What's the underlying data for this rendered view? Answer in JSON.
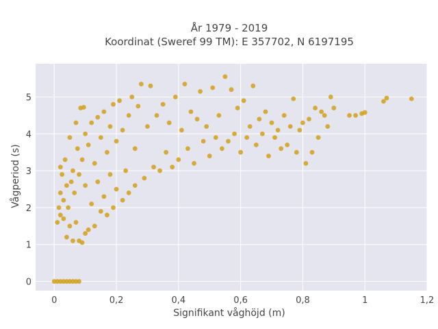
{
  "chart_data": {
    "type": "scatter",
    "title": "År 1979 - 2019",
    "subtitle": "Koordinat (Sweref 99 TM): E 357702, N 6197195",
    "xlabel": "Signifikant våghöjd (m)",
    "ylabel": "Vågperiod (s)",
    "xlim": [
      -0.06,
      1.2
    ],
    "ylim": [
      -0.25,
      5.9
    ],
    "x_ticks": [
      0,
      0.2,
      0.4,
      0.6,
      0.8,
      1,
      1.2
    ],
    "x_tick_labels": [
      "0",
      "0,2",
      "0,4",
      "0,6",
      "0,8",
      "1",
      "1,2"
    ],
    "y_ticks": [
      0,
      1,
      2,
      3,
      4,
      5
    ],
    "y_tick_labels": [
      "0",
      "1",
      "2",
      "3",
      "4",
      "5"
    ],
    "grid": true,
    "legend": "none",
    "marker_color": "#D4A017",
    "background_color": "#E5E5F0",
    "grid_color": "#FFFFFF",
    "series": [
      {
        "points": [
          [
            0.01,
            1.6
          ],
          [
            0.015,
            2.0
          ],
          [
            0.02,
            1.8
          ],
          [
            0.02,
            2.4
          ],
          [
            0.02,
            3.1
          ],
          [
            0.025,
            2.9
          ],
          [
            0.03,
            1.7
          ],
          [
            0.03,
            2.2
          ],
          [
            0.035,
            3.3
          ],
          [
            0.04,
            2.6
          ],
          [
            0.04,
            1.2
          ],
          [
            0.045,
            2.0
          ],
          [
            0.05,
            1.5
          ],
          [
            0.05,
            3.9
          ],
          [
            0.055,
            2.7
          ],
          [
            0.06,
            1.1
          ],
          [
            0.06,
            3.0
          ],
          [
            0.065,
            2.4
          ],
          [
            0.07,
            4.3
          ],
          [
            0.07,
            1.6
          ],
          [
            0.075,
            3.6
          ],
          [
            0.08,
            1.1
          ],
          [
            0.08,
            2.9
          ],
          [
            0.085,
            4.7
          ],
          [
            0.09,
            1.05
          ],
          [
            0.09,
            3.3
          ],
          [
            0.095,
            4.72
          ],
          [
            0.1,
            1.3
          ],
          [
            0.1,
            2.6
          ],
          [
            0.1,
            4.0
          ],
          [
            0.11,
            1.4
          ],
          [
            0.11,
            3.7
          ],
          [
            0.12,
            2.1
          ],
          [
            0.12,
            4.3
          ],
          [
            0.13,
            1.5
          ],
          [
            0.13,
            3.2
          ],
          [
            0.14,
            2.7
          ],
          [
            0.14,
            4.45
          ],
          [
            0.15,
            1.9
          ],
          [
            0.15,
            3.9
          ],
          [
            0.16,
            2.3
          ],
          [
            0.16,
            4.6
          ],
          [
            0.17,
            1.8
          ],
          [
            0.17,
            3.5
          ],
          [
            0.18,
            2.9
          ],
          [
            0.18,
            4.2
          ],
          [
            0.19,
            2.0
          ],
          [
            0.19,
            4.8
          ],
          [
            0.2,
            2.5
          ],
          [
            0.2,
            3.8
          ],
          [
            0.21,
            4.9
          ],
          [
            0.22,
            2.2
          ],
          [
            0.22,
            4.1
          ],
          [
            0.23,
            3.0
          ],
          [
            0.24,
            2.4
          ],
          [
            0.24,
            4.5
          ],
          [
            0.25,
            5.0
          ],
          [
            0.26,
            2.6
          ],
          [
            0.26,
            3.6
          ],
          [
            0.27,
            4.75
          ],
          [
            0.28,
            5.35
          ],
          [
            0.29,
            2.8
          ],
          [
            0.3,
            4.2
          ],
          [
            0.31,
            5.3
          ],
          [
            0.32,
            3.1
          ],
          [
            0.33,
            4.5
          ],
          [
            0.34,
            3.0
          ],
          [
            0.35,
            4.8
          ],
          [
            0.36,
            3.5
          ],
          [
            0.37,
            4.3
          ],
          [
            0.38,
            3.1
          ],
          [
            0.39,
            5.0
          ],
          [
            0.4,
            3.3
          ],
          [
            0.41,
            4.1
          ],
          [
            0.42,
            5.35
          ],
          [
            0.43,
            3.6
          ],
          [
            0.44,
            4.6
          ],
          [
            0.45,
            3.2
          ],
          [
            0.46,
            4.4
          ],
          [
            0.47,
            5.15
          ],
          [
            0.48,
            3.8
          ],
          [
            0.49,
            4.2
          ],
          [
            0.5,
            3.4
          ],
          [
            0.51,
            5.25
          ],
          [
            0.52,
            3.9
          ],
          [
            0.53,
            4.5
          ],
          [
            0.54,
            3.6
          ],
          [
            0.55,
            5.55
          ],
          [
            0.56,
            3.8
          ],
          [
            0.57,
            5.2
          ],
          [
            0.58,
            4.0
          ],
          [
            0.59,
            4.7
          ],
          [
            0.6,
            3.5
          ],
          [
            0.61,
            4.9
          ],
          [
            0.62,
            3.9
          ],
          [
            0.63,
            4.2
          ],
          [
            0.64,
            5.3
          ],
          [
            0.65,
            3.7
          ],
          [
            0.66,
            4.4
          ],
          [
            0.67,
            4.0
          ],
          [
            0.68,
            4.6
          ],
          [
            0.69,
            3.4
          ],
          [
            0.7,
            4.3
          ],
          [
            0.71,
            3.9
          ],
          [
            0.72,
            4.1
          ],
          [
            0.73,
            3.6
          ],
          [
            0.74,
            4.5
          ],
          [
            0.75,
            3.7
          ],
          [
            0.76,
            4.2
          ],
          [
            0.77,
            4.95
          ],
          [
            0.78,
            3.5
          ],
          [
            0.79,
            4.1
          ],
          [
            0.8,
            4.3
          ],
          [
            0.81,
            3.2
          ],
          [
            0.82,
            4.4
          ],
          [
            0.83,
            3.5
          ],
          [
            0.84,
            4.7
          ],
          [
            0.85,
            3.9
          ],
          [
            0.86,
            4.6
          ],
          [
            0.87,
            4.5
          ],
          [
            0.88,
            4.2
          ],
          [
            0.89,
            5.0
          ],
          [
            0.9,
            4.7
          ],
          [
            0.95,
            4.5
          ],
          [
            0.97,
            4.5
          ],
          [
            0.99,
            4.55
          ],
          [
            1.0,
            4.58
          ],
          [
            1.06,
            4.88
          ],
          [
            1.07,
            4.97
          ],
          [
            1.15,
            4.95
          ],
          [
            0.0,
            0.0
          ],
          [
            0.01,
            0.0
          ],
          [
            0.02,
            0.0
          ],
          [
            0.03,
            0.0
          ],
          [
            0.04,
            0.0
          ],
          [
            0.05,
            0.0
          ],
          [
            0.06,
            0.0
          ],
          [
            0.07,
            0.0
          ],
          [
            0.08,
            0.0
          ]
        ]
      }
    ]
  }
}
